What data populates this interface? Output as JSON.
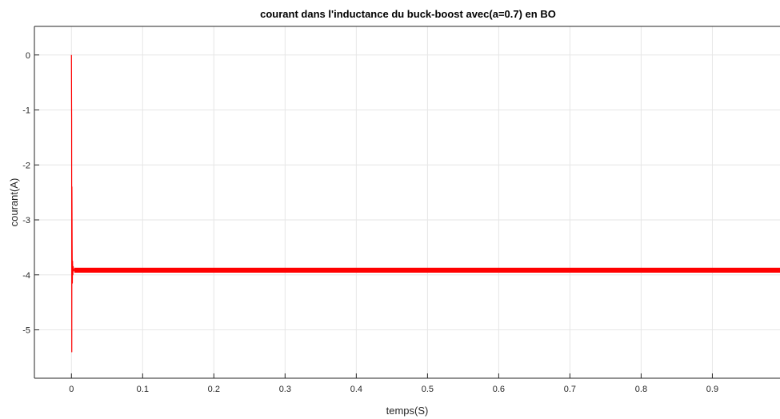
{
  "chart_data": {
    "type": "line",
    "title": "courant dans l'inductance du buck-boost avec(a=0.7) en BO",
    "xlabel": "temps(S)",
    "ylabel": "courant(A)",
    "xlim": [
      -0.052,
      0.995
    ],
    "ylim": [
      -5.88,
      0.52
    ],
    "x_ticks": [
      0,
      0.1,
      0.2,
      0.3,
      0.4,
      0.5,
      0.6,
      0.7,
      0.8,
      0.9
    ],
    "x_tick_labels": [
      "0",
      "0.1",
      "0.2",
      "0.3",
      "0.4",
      "0.5",
      "0.6",
      "0.7",
      "0.8",
      "0.9"
    ],
    "y_ticks": [
      0,
      -1,
      -2,
      -3,
      -4,
      -5
    ],
    "y_tick_labels": [
      "0",
      "-1",
      "-2",
      "-3",
      "-4",
      "-5"
    ],
    "grid": true,
    "series": [
      {
        "color": "#ff0000",
        "x": [
          0.0,
          0.0002,
          0.0003,
          0.0005,
          0.0007,
          0.001,
          0.0013,
          0.0016,
          0.002,
          0.0025,
          0.003,
          0.004,
          0.005,
          0.006,
          0.008,
          0.01,
          0.02,
          0.05,
          0.1,
          0.2,
          0.3,
          0.4,
          0.5,
          0.6,
          0.7,
          0.8,
          0.9,
          0.995
        ],
        "y": [
          0.0,
          -0.9,
          -1.15,
          -5.4,
          -2.4,
          -3.45,
          -4.15,
          -3.75,
          -4.0,
          -3.85,
          -3.93,
          -3.9,
          -3.92,
          -3.91,
          -3.91,
          -3.91,
          -3.91,
          -3.91,
          -3.91,
          -3.91,
          -3.91,
          -3.91,
          -3.91,
          -3.91,
          -3.91,
          -3.91,
          -3.91,
          -3.91
        ]
      }
    ],
    "ripple_band": [
      -3.87,
      -3.96
    ]
  }
}
